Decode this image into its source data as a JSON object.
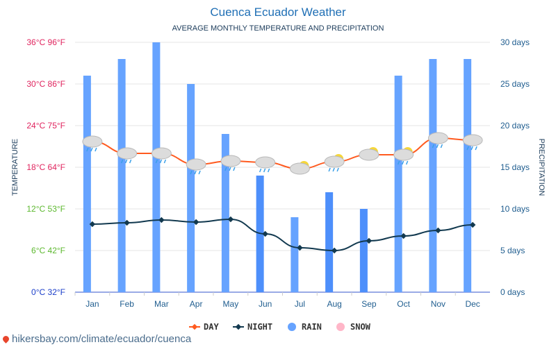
{
  "title": "Cuenca Ecuador Weather",
  "subtitle": "AVERAGE MONTHLY TEMPERATURE AND PRECIPITATION",
  "footer": "hikersbay.com/climate/ecuador/cuenca",
  "chart_data": {
    "type": "bar+line",
    "categories": [
      "Jan",
      "Feb",
      "Mar",
      "Apr",
      "May",
      "Jun",
      "Jul",
      "Aug",
      "Sep",
      "Oct",
      "Nov",
      "Dec"
    ],
    "ylabel_left": "TEMPERATURE",
    "ylabel_right": "PRECIPITATION",
    "left_ticks": [
      {
        "c": 0,
        "label": "0°C 32°F",
        "color": "#1a3dc9"
      },
      {
        "c": 6,
        "label": "6°C 42°F",
        "color": "#5cb82e"
      },
      {
        "c": 12,
        "label": "12°C 53°F",
        "color": "#5cb82e"
      },
      {
        "c": 18,
        "label": "18°C 64°F",
        "color": "#e0245e"
      },
      {
        "c": 24,
        "label": "24°C 75°F",
        "color": "#e0245e"
      },
      {
        "c": 30,
        "label": "30°C 86°F",
        "color": "#e0245e"
      },
      {
        "c": 36,
        "label": "36°C 96°F",
        "color": "#e0245e"
      }
    ],
    "right_ticks": [
      {
        "d": 0,
        "label": "0 days"
      },
      {
        "d": 5,
        "label": "5 days"
      },
      {
        "d": 10,
        "label": "10 days"
      },
      {
        "d": 15,
        "label": "15 days"
      },
      {
        "d": 20,
        "label": "20 days"
      },
      {
        "d": 25,
        "label": "25 days"
      },
      {
        "d": 30,
        "label": "30 days"
      }
    ],
    "ylim_left": [
      0,
      36
    ],
    "ylim_right": [
      0,
      30
    ],
    "grid": true,
    "legend_position": "bottom",
    "series": [
      {
        "name": "DAY",
        "type": "line",
        "unit": "°C",
        "color": "#ff5a1f",
        "values": [
          21.7,
          20.0,
          20.0,
          18.4,
          18.9,
          18.7,
          17.8,
          18.8,
          19.8,
          19.8,
          22.2,
          21.9
        ]
      },
      {
        "name": "NIGHT",
        "type": "line",
        "unit": "°C",
        "color": "#12394f",
        "values": [
          9.8,
          10.0,
          10.4,
          10.1,
          10.5,
          8.4,
          6.4,
          6.0,
          7.4,
          8.1,
          8.9,
          9.7
        ]
      },
      {
        "name": "RAIN",
        "type": "bar",
        "unit": "days",
        "color": "#66a3ff",
        "values": [
          26,
          28,
          30,
          25,
          19,
          14,
          9,
          12,
          10,
          26,
          28,
          28
        ]
      },
      {
        "name": "SNOW",
        "type": "bar",
        "unit": "days",
        "color": "#ffb6c8",
        "values": [
          0,
          0,
          0,
          0,
          0,
          0,
          0,
          0,
          0,
          0,
          0,
          0
        ]
      }
    ],
    "weather_icons": [
      "rain",
      "rain",
      "rain",
      "rain",
      "rain",
      "rain",
      "partly-sunny",
      "partly-sunny-rain",
      "partly-sunny",
      "partly-sunny-rain",
      "rain",
      "rain"
    ]
  }
}
